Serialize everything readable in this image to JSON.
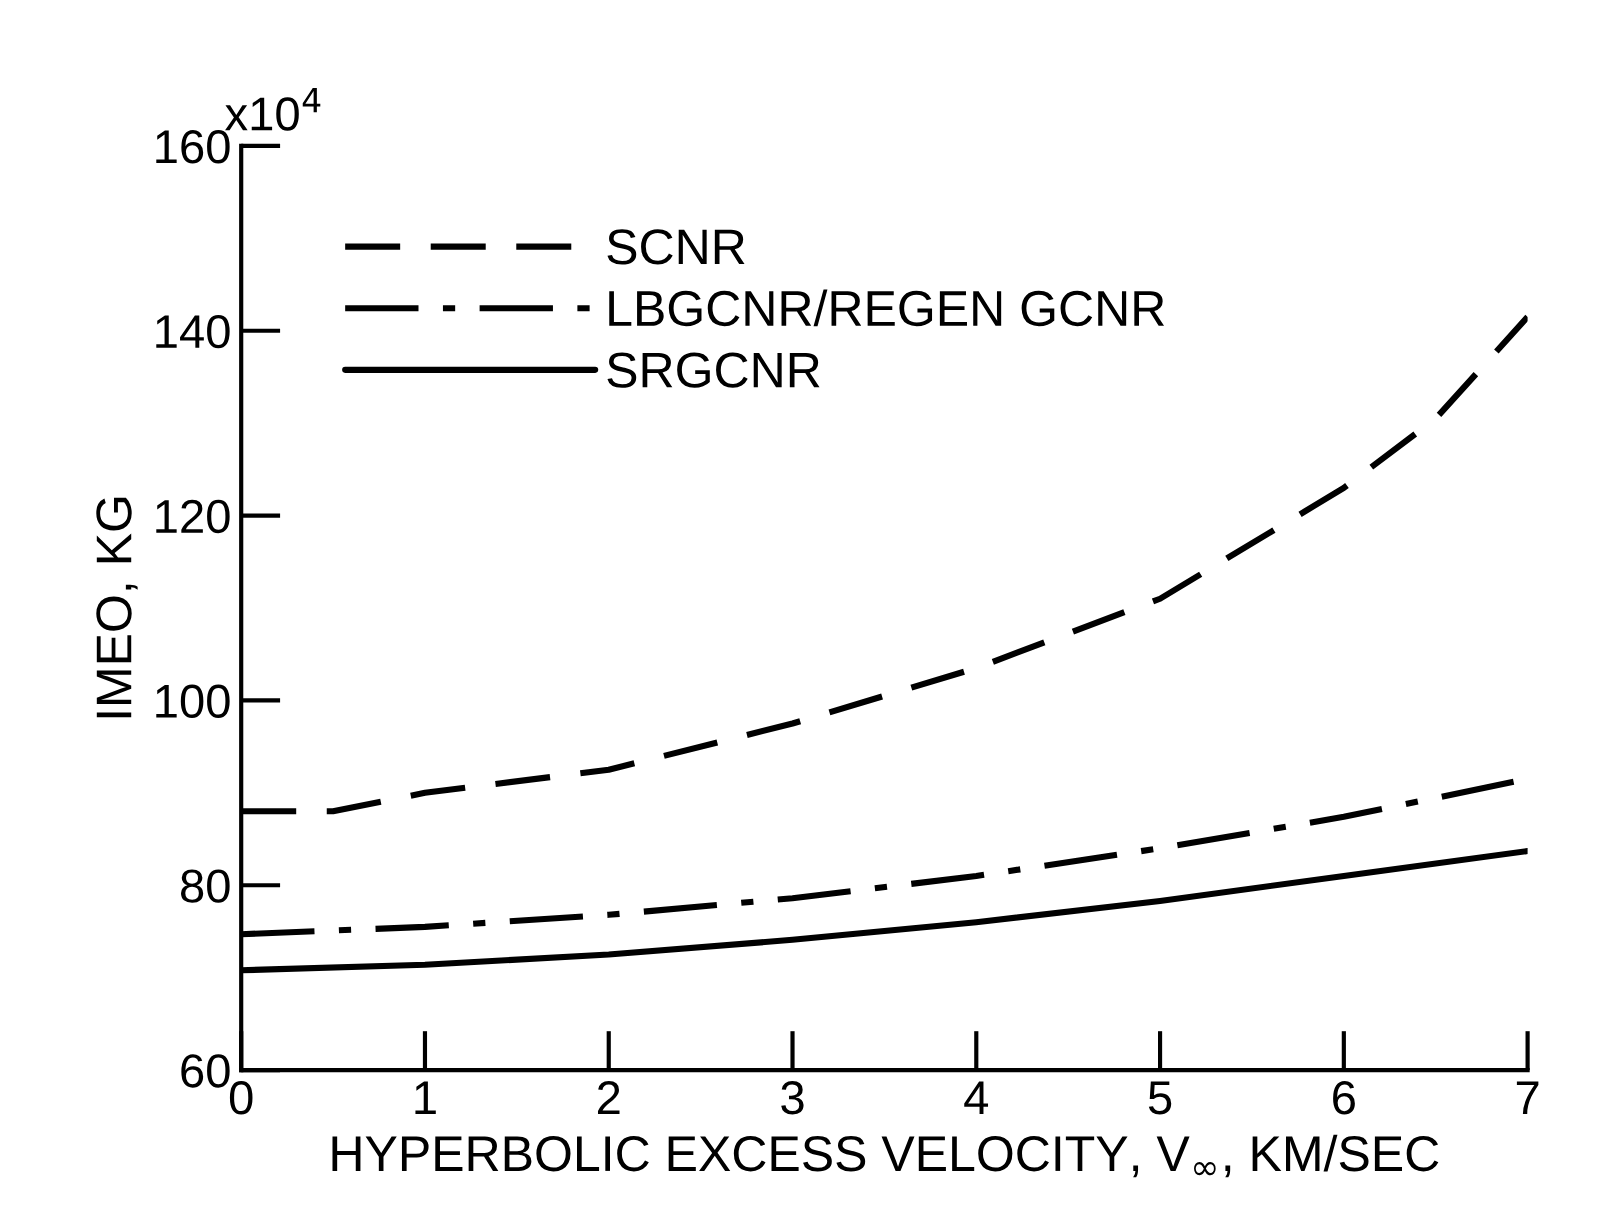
{
  "chart_data": {
    "type": "line",
    "xlabel": "HYPERBOLIC EXCESS VELOCITY, V$_{∞}$, KM/SEC",
    "ylabel": "IMEO, KG",
    "x": [
      0,
      0.5,
      1,
      2,
      3,
      4,
      5,
      6,
      6.5,
      7
    ],
    "series": [
      {
        "name": "SCNR",
        "color": "#000000",
        "line_style": "dashed",
        "values": [
          88,
          88,
          90,
          92.5,
          97.5,
          103.5,
          111,
          123,
          130.5,
          141.5
        ]
      },
      {
        "name": "LBGCNR/REGEN GCNR",
        "color": "#000000",
        "line_style": "dashdot",
        "x": [
          0,
          1,
          2,
          3,
          4,
          5,
          6,
          7
        ],
        "values": [
          74.7,
          75.5,
          76.8,
          78.6,
          81,
          84,
          87.4,
          91.5
        ]
      },
      {
        "name": "SRGCNR",
        "color": "#000000",
        "line_style": "solid",
        "x": [
          0,
          1,
          2,
          3,
          4,
          5,
          6,
          7
        ],
        "values": [
          70.8,
          71.4,
          72.5,
          74.1,
          76,
          78.3,
          81,
          83.7
        ]
      }
    ],
    "xlim": [
      0,
      7
    ],
    "xticks": [
      0,
      1,
      2,
      3,
      4,
      5,
      6,
      7
    ],
    "ylim": [
      60,
      160
    ],
    "yticks": [
      60,
      80,
      100,
      120,
      140,
      160
    ],
    "annotations": [
      "x10$^{4}$"
    ],
    "grid": false,
    "legend": "top",
    "marker": "none"
  }
}
